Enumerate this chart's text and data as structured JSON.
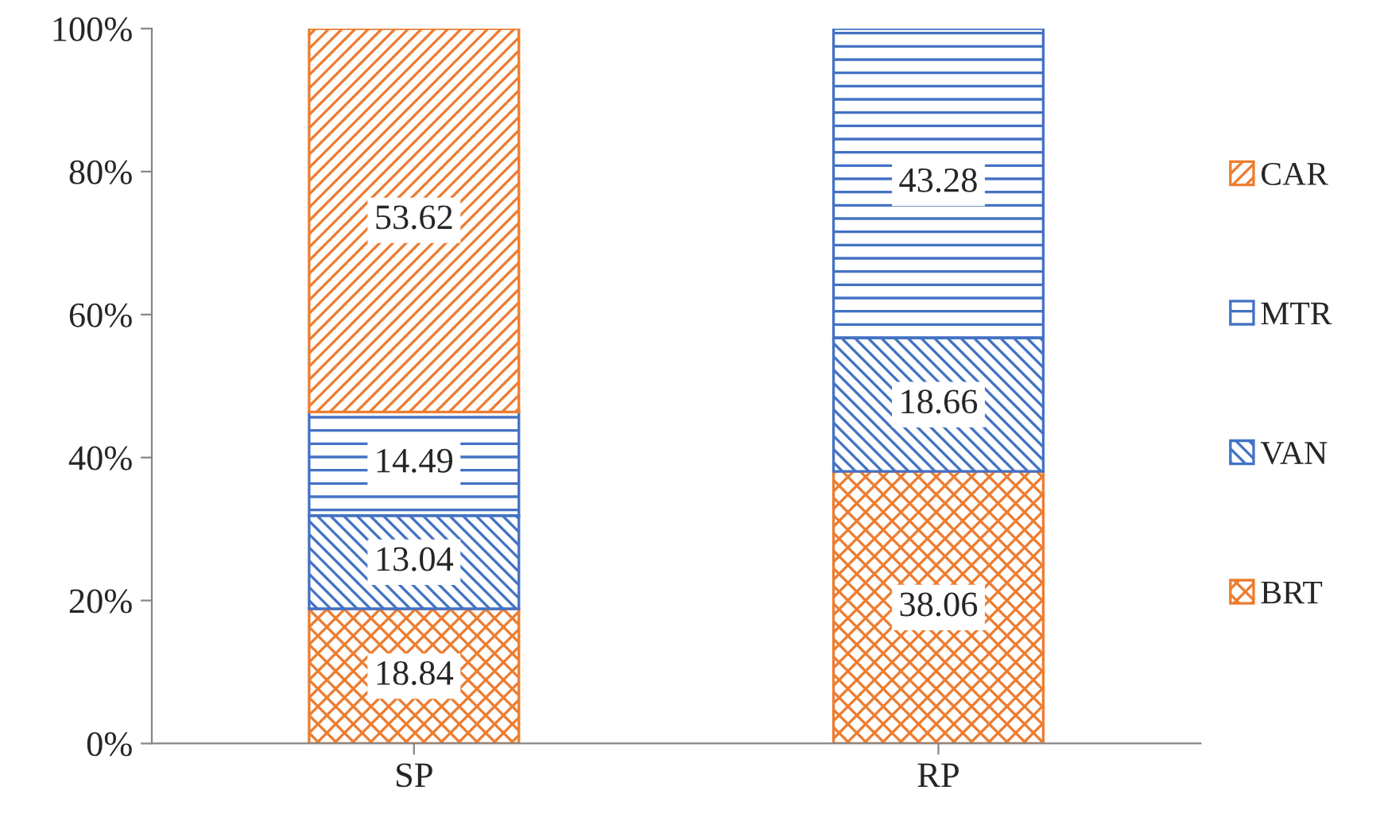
{
  "chart_data": {
    "type": "bar",
    "stacked": true,
    "categories": [
      "SP",
      "RP"
    ],
    "series": [
      {
        "name": "BRT",
        "color": "#ed7d31",
        "values": [
          18.84,
          38.06
        ]
      },
      {
        "name": "VAN",
        "color": "#4472c4",
        "values": [
          13.04,
          18.66
        ]
      },
      {
        "name": "MTR",
        "color": "#4472c4",
        "values": [
          14.49,
          43.28
        ]
      },
      {
        "name": "CAR",
        "color": "#ed7d31",
        "values": [
          53.62,
          null
        ]
      }
    ],
    "ylim": [
      0,
      100
    ],
    "yticks": [
      {
        "value": 0,
        "label": "0%"
      },
      {
        "value": 20,
        "label": "20%"
      },
      {
        "value": 40,
        "label": "40%"
      },
      {
        "value": 60,
        "label": "60%"
      },
      {
        "value": 80,
        "label": "80%"
      },
      {
        "value": 100,
        "label": "100%"
      }
    ],
    "data_labels": true,
    "legend": "right",
    "grid": false
  }
}
